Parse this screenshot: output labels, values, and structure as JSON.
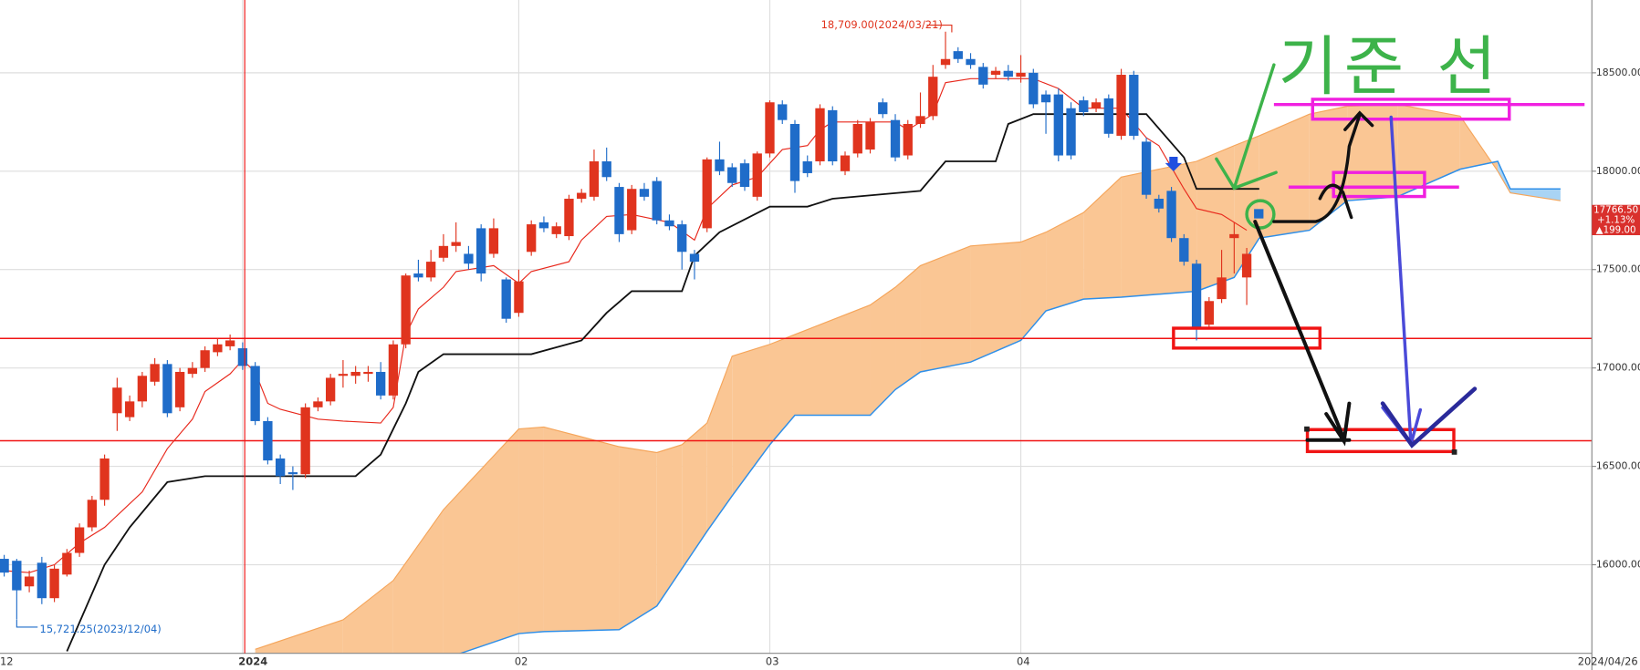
{
  "chart_data": {
    "type": "candlestick",
    "categories": [
      "12",
      null,
      null,
      null,
      null,
      null,
      null,
      null,
      null,
      null,
      null,
      null,
      null,
      null,
      null,
      null,
      null,
      null,
      null,
      "2024",
      null,
      null,
      null,
      null,
      null,
      null,
      null,
      null,
      null,
      null,
      null,
      null,
      null,
      null,
      null,
      null,
      null,
      null,
      null,
      null,
      null,
      "02",
      null,
      null,
      null,
      null,
      null,
      null,
      null,
      null,
      null,
      null,
      null,
      null,
      null,
      null,
      null,
      null,
      null,
      null,
      null,
      "03",
      null,
      null,
      null,
      null,
      null,
      null,
      null,
      null,
      null,
      null,
      null,
      null,
      null,
      null,
      null,
      null,
      null,
      null,
      null,
      "04",
      null,
      null,
      null,
      null,
      null,
      null,
      null,
      null,
      null,
      null,
      null,
      null,
      null,
      null,
      null,
      null,
      null,
      null
    ],
    "open": [
      16030,
      16020,
      15890,
      16010,
      15830,
      15950,
      16060,
      16190,
      16330,
      16770,
      16750,
      16830,
      16930,
      17020,
      16800,
      16970,
      17000,
      17080,
      17110,
      17100,
      17010,
      16730,
      16540,
      16470,
      16460,
      16800,
      16830,
      16960,
      16960,
      16970,
      16980,
      16860,
      17120,
      17480,
      17460,
      17560,
      17620,
      17580,
      17710,
      17580,
      17450,
      17280,
      17590,
      17740,
      17680,
      17670,
      17860,
      17870,
      18050,
      17920,
      17700,
      17910,
      17950,
      17750,
      17730,
      17580,
      17710,
      18060,
      18020,
      18040,
      17870,
      18090,
      18340,
      18240,
      18050,
      18050,
      18310,
      18000,
      18090,
      18110,
      18350,
      18260,
      18080,
      18240,
      18280,
      18540,
      18610,
      18570,
      18530,
      18490,
      18510,
      18480,
      18500,
      18390,
      18390,
      18320,
      18360,
      18320,
      18370,
      18180,
      18490,
      18150,
      17860,
      17900,
      17660,
      17530,
      17220,
      17350,
      17660,
      17460
    ],
    "high": [
      16050,
      16030,
      15970,
      16040,
      16000,
      16080,
      16210,
      16350,
      16560,
      16950,
      16860,
      16980,
      17050,
      17040,
      17000,
      17030,
      17110,
      17150,
      17170,
      17130,
      17030,
      16750,
      16560,
      16500,
      16820,
      16850,
      16970,
      17040,
      17010,
      17010,
      17030,
      17140,
      17480,
      17550,
      17600,
      17680,
      17740,
      17620,
      17730,
      17760,
      17460,
      17500,
      17750,
      17770,
      17740,
      17880,
      17910,
      18110,
      18120,
      17940,
      17930,
      17940,
      17970,
      17780,
      17750,
      17600,
      18070,
      18150,
      18040,
      18060,
      18100,
      18360,
      18360,
      18260,
      18080,
      18340,
      18330,
      18100,
      18260,
      18270,
      18370,
      18290,
      18260,
      18400,
      18540,
      18709,
      18630,
      18600,
      18550,
      18530,
      18540,
      18590,
      18520,
      18410,
      18420,
      18350,
      18380,
      18370,
      18390,
      18520,
      18510,
      18170,
      17880,
      17920,
      17680,
      17550,
      17360,
      17600,
      17740,
      17610
    ],
    "low": [
      15940,
      15721,
      15860,
      15800,
      15810,
      15940,
      16040,
      16170,
      16300,
      16680,
      16730,
      16800,
      16910,
      16750,
      16780,
      16950,
      16980,
      17060,
      17090,
      16990,
      16710,
      16510,
      16410,
      16380,
      16440,
      16780,
      16810,
      16900,
      16920,
      16930,
      16840,
      16840,
      17100,
      17440,
      17440,
      17540,
      17590,
      17500,
      17440,
      17560,
      17230,
      17260,
      17570,
      17690,
      17660,
      17650,
      17840,
      17850,
      17950,
      17640,
      17680,
      17850,
      17730,
      17700,
      17500,
      17450,
      17690,
      17980,
      17920,
      17900,
      17850,
      18070,
      18240,
      17890,
      17970,
      18030,
      18030,
      17980,
      18070,
      18090,
      18270,
      18050,
      18060,
      18220,
      18260,
      18520,
      18550,
      18520,
      18420,
      18470,
      18460,
      18450,
      18320,
      18190,
      18050,
      18060,
      18280,
      18300,
      18170,
      18160,
      18160,
      17860,
      17790,
      17640,
      17520,
      17140,
      17200,
      17330,
      17480,
      17320
    ],
    "close": [
      15960,
      15870,
      15940,
      15830,
      15980,
      16060,
      16190,
      16330,
      16540,
      16900,
      16830,
      16960,
      17020,
      16770,
      16980,
      17000,
      17090,
      17120,
      17140,
      17010,
      16730,
      16530,
      16450,
      16460,
      16800,
      16830,
      16950,
      16970,
      16980,
      16980,
      16860,
      17120,
      17470,
      17460,
      17540,
      17620,
      17640,
      17530,
      17480,
      17710,
      17250,
      17440,
      17730,
      17710,
      17720,
      17860,
      17890,
      18050,
      17970,
      17680,
      17910,
      17870,
      17750,
      17720,
      17590,
      17540,
      18060,
      18000,
      17940,
      17920,
      18090,
      18350,
      18260,
      17950,
      17990,
      18320,
      18050,
      18080,
      18240,
      18250,
      18290,
      18070,
      18240,
      18280,
      18480,
      18570,
      18570,
      18540,
      18440,
      18510,
      18480,
      18500,
      18340,
      18350,
      18080,
      18080,
      18300,
      18350,
      18190,
      18490,
      18180,
      17880,
      17810,
      17660,
      17540,
      17200,
      17340,
      17460,
      17680,
      17580
    ],
    "up_color": "#e0341e",
    "down_color": "#1f6cc9",
    "lines": [
      {
        "color": "#e8281c",
        "x": [
          0,
          2,
          4,
          6,
          8,
          11,
          13,
          15,
          16,
          18,
          19,
          20,
          21,
          22,
          25,
          27,
          30,
          31,
          32,
          33,
          35,
          36,
          39,
          41,
          42,
          45,
          46,
          48,
          50,
          53,
          55,
          56,
          58,
          60,
          62,
          64,
          65,
          66,
          69,
          71,
          72,
          74,
          75,
          77,
          82,
          84,
          86,
          89,
          91,
          92,
          94,
          95,
          97,
          99
        ],
        "values": [
          15970,
          15960,
          16000,
          16110,
          16190,
          16370,
          16590,
          16740,
          16880,
          16970,
          17040,
          16980,
          16820,
          16790,
          16740,
          16730,
          16720,
          16800,
          17170,
          17300,
          17410,
          17490,
          17520,
          17430,
          17490,
          17540,
          17650,
          17770,
          17780,
          17740,
          17650,
          17810,
          17930,
          17970,
          18110,
          18130,
          18210,
          18250,
          18250,
          18250,
          18210,
          18290,
          18450,
          18470,
          18470,
          18420,
          18320,
          18320,
          18170,
          18130,
          17910,
          17810,
          17780,
          17700
        ]
      },
      {
        "color": "#111111",
        "x": [
          5,
          8,
          10,
          13,
          16,
          23,
          28,
          30,
          31,
          32,
          33,
          35,
          42,
          46,
          48,
          50,
          54,
          55,
          57,
          61,
          64,
          66,
          73,
          75,
          79,
          80,
          82,
          91,
          94,
          95,
          100
        ],
        "values": [
          15560,
          16000,
          16190,
          16420,
          16450,
          16450,
          16450,
          16560,
          16690,
          16820,
          16980,
          17070,
          17070,
          17140,
          17280,
          17390,
          17390,
          17570,
          17690,
          17820,
          17820,
          17860,
          17900,
          18050,
          18050,
          18240,
          18290,
          18290,
          18070,
          17910,
          17910
        ]
      }
    ],
    "cloud": {
      "x": [
        20,
        27,
        31,
        35,
        41,
        43,
        49,
        52,
        54,
        56,
        58,
        61,
        63,
        69,
        71,
        73,
        77,
        81,
        83,
        86,
        89,
        95,
        98,
        100,
        104,
        107,
        111,
        116,
        119,
        120,
        124
      ],
      "span1": {
        "color": "#2f8fe8",
        "values": [
          null,
          null,
          null,
          15520,
          15650,
          15660,
          15670,
          15790,
          15980,
          16170,
          16350,
          16610,
          16760,
          16760,
          16890,
          16980,
          17030,
          17140,
          17290,
          17350,
          17360,
          17390,
          17460,
          17660,
          17700,
          17850,
          17870,
          18010,
          18050,
          17910,
          17910
        ]
      },
      "span2": {
        "color": "#f5a55a",
        "values": [
          15570,
          15720,
          15920,
          16280,
          16690,
          16700,
          16600,
          16570,
          16610,
          16720,
          17060,
          17120,
          17170,
          17320,
          17410,
          17520,
          17620,
          17640,
          17690,
          17790,
          17970,
          18050,
          18130,
          18180,
          18290,
          18330,
          18340,
          18280,
          18000,
          17890,
          17850
        ]
      },
      "fill_span2_above": "#fac694",
      "fill_span1_above": "#a9d4f5"
    },
    "levels": {
      "color": "#f01414",
      "values": [
        17150,
        16630
      ]
    },
    "ylim": [
      15550,
      18870
    ],
    "yticks": [
      {
        "value": 18500,
        "label": "18500.00"
      },
      {
        "value": 18000,
        "label": "18000.00"
      },
      {
        "value": 17500,
        "label": "17500.00"
      },
      {
        "value": 17000,
        "label": "17000.00"
      },
      {
        "value": 16500,
        "label": "16500.00"
      },
      {
        "value": 16000,
        "label": "16000.00"
      }
    ],
    "grid": true,
    "date_label": "2024/04/26",
    "high_label": "18,709.00(2024/03/21)",
    "low_label": "15,721.25(2023/12/04)",
    "price_box": [
      "17766.50",
      "+1.13%",
      "▲199.00"
    ],
    "handwriting": "기준 선"
  }
}
